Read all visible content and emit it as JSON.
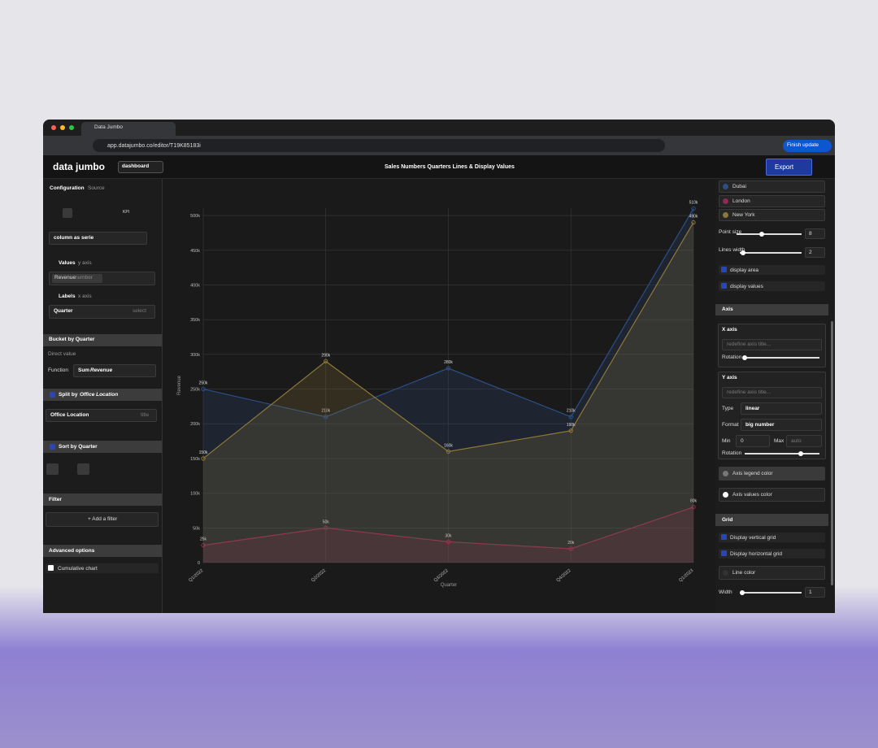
{
  "browser": {
    "tab_title": "Data Jumbo",
    "url": "app.datajumbo.co/editor/T19K85183i",
    "finish_update": "Finish update"
  },
  "header": {
    "logo": "data jumbo",
    "back": "dashboard",
    "title": "Sales Numbers Quarters Lines & Display Values",
    "export": "Export"
  },
  "left_panel": {
    "tabs": [
      "Configuration",
      "Source"
    ],
    "kpi": "KPI",
    "serie_mode": "column as serie",
    "values_label": "Values",
    "values_hint": "y axis",
    "value_chip": "Revenue",
    "value_chip_type": "number",
    "labels_label": "Labels",
    "labels_hint": "x axis",
    "labels_field": "Quarter",
    "labels_select": "select",
    "bucket": "Bucket by Quarter",
    "direct_value": "Direct value",
    "function_label": "Function",
    "function_agg": "Sum",
    "function_field": "Revenue",
    "split_label": "Split by",
    "split_field": "Office Location",
    "office_field": "Office Location",
    "office_hint": "title",
    "sort": "Sort by Quarter",
    "filter": "Filter",
    "add_filter": "+ Add a filter",
    "advanced": "Advanced options",
    "cumulative": "Cumulative chart"
  },
  "right_panel": {
    "point_size_label": "Point size",
    "point_size": 8,
    "lines_width_label": "Lines width",
    "lines_width": 2,
    "display_area": "display area",
    "display_values": "display values",
    "axis": "Axis",
    "x_axis": "X axis",
    "placeholder": "redefine axis title...",
    "rotation": "Rotation",
    "y_axis": "Y axis",
    "type_label": "Type",
    "type_value": "linear",
    "format_label": "Format",
    "format_value": "big number",
    "min_label": "Min",
    "min_value": "0",
    "max_label": "Max",
    "max_value": "auto",
    "axis_legend_color": "Axis legend color",
    "axis_values_color": "Axis values color",
    "grid": "Grid",
    "vertical_grid": "Display vertical grid",
    "horizontal_grid": "Display horizontal grid",
    "line_color": "Line color",
    "width_label": "Width",
    "width_value": 1
  },
  "chart_data": {
    "type": "line",
    "x_label": "Quarter",
    "y_label": "Revenue",
    "categories": [
      "Q1/2022",
      "Q2/2022",
      "Q3/2022",
      "Q4/2022",
      "Q1/2023"
    ],
    "series": [
      {
        "name": "Dubai",
        "color": "#2c4f86",
        "values": [
          250000,
          210000,
          280000,
          210000,
          510000
        ],
        "value_labels": [
          "250k",
          "210k",
          "280k",
          "210k",
          "510k"
        ]
      },
      {
        "name": "London",
        "color": "#8e2a57",
        "values": [
          25000,
          50000,
          30000,
          20000,
          80000
        ],
        "value_labels": [
          "25k",
          "50k",
          "30k",
          "20k",
          "80k"
        ]
      },
      {
        "name": "New York",
        "color": "#8c7838",
        "values": [
          150000,
          290000,
          160000,
          190000,
          490000
        ],
        "value_labels": [
          "150k",
          "290k",
          "160k",
          "190k",
          "490k"
        ]
      }
    ],
    "ylim": [
      0,
      520000
    ],
    "yticks": [
      0,
      {
        "value": 50000,
        "label": "50k"
      },
      {
        "value": 100000,
        "label": "100k"
      },
      {
        "value": 150000,
        "label": "150k"
      },
      {
        "value": 200000,
        "label": "200k"
      },
      {
        "value": 250000,
        "label": "250k"
      },
      {
        "value": 300000,
        "label": "300k"
      },
      {
        "value": 350000,
        "label": "350k"
      },
      {
        "value": 400000,
        "label": "400k"
      },
      {
        "value": 450000,
        "label": "450k"
      },
      {
        "value": 500000,
        "label": "500k"
      }
    ],
    "grid": true,
    "area": true
  }
}
